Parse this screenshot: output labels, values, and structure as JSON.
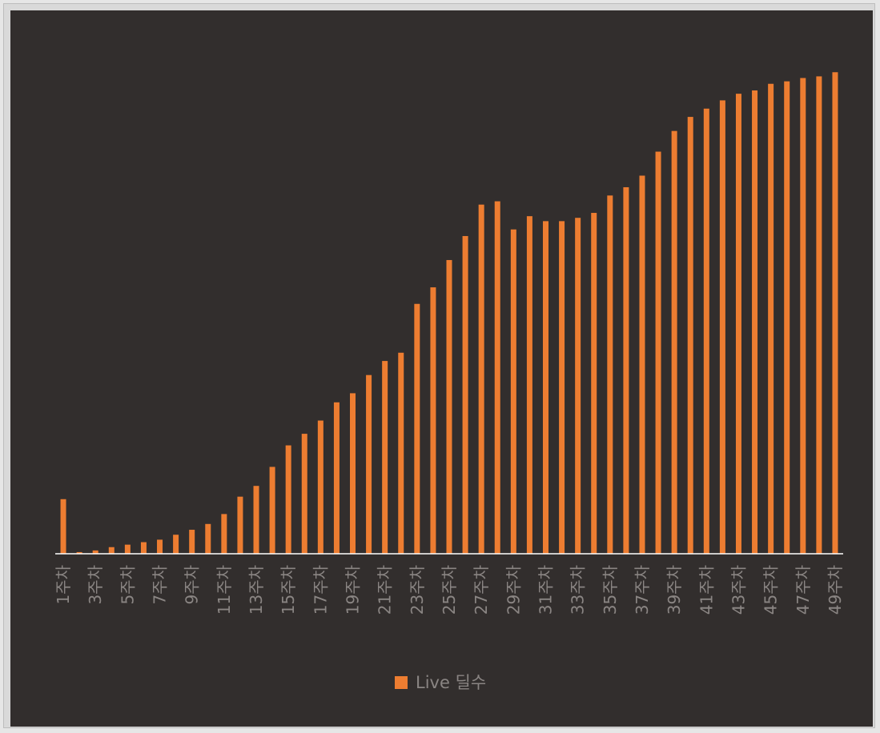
{
  "chart_data": {
    "type": "bar",
    "title": "",
    "xlabel": "",
    "ylabel": "",
    "grid": false,
    "legend": {
      "position": "bottom",
      "label": "Live 딜수"
    },
    "colors": {
      "background": "#322e2d",
      "bar": "#ed7d31",
      "axis": "#ffffff",
      "tick_text": "#8a8583",
      "legend_text": "#8a8583"
    },
    "ylim": [
      0,
      560
    ],
    "tick_label_step": 2,
    "categories": [
      "1주차",
      "2주차",
      "3주차",
      "4주차",
      "5주차",
      "6주차",
      "7주차",
      "8주차",
      "9주차",
      "10주차",
      "11주차",
      "12주차",
      "13주차",
      "14주차",
      "15주차",
      "16주차",
      "17주차",
      "18주차",
      "19주차",
      "20주차",
      "21주차",
      "22주차",
      "23주차",
      "24주차",
      "25주차",
      "26주차",
      "27주차",
      "28주차",
      "29주차",
      "30주차",
      "31주차",
      "32주차",
      "33주차",
      "34주차",
      "35주차",
      "36주차",
      "37주차",
      "38주차",
      "39주차",
      "40주차",
      "41주차",
      "42주차",
      "43주차",
      "44주차",
      "45주차",
      "46주차",
      "47주차",
      "48주차",
      "49주차"
    ],
    "series": [
      {
        "name": "Live 딜수",
        "values": [
          66,
          2,
          4,
          8,
          11,
          14,
          17,
          23,
          29,
          36,
          48,
          69,
          82,
          105,
          131,
          145,
          161,
          183,
          194,
          216,
          233,
          243,
          302,
          322,
          355,
          384,
          422,
          426,
          392,
          408,
          402,
          402,
          406,
          412,
          433,
          443,
          457,
          486,
          511,
          528,
          538,
          548,
          556,
          560,
          568,
          571,
          575,
          577,
          582
        ]
      }
    ]
  }
}
